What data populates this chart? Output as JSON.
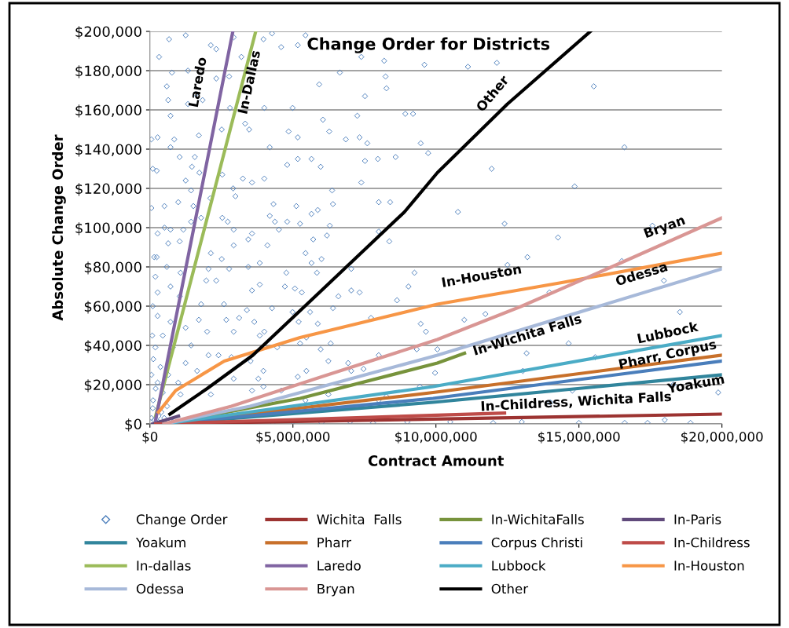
{
  "chart_data": {
    "type": "line",
    "title": "Change Order for Districts",
    "xlabel": "Contract Amount",
    "ylabel": "Absolute Change Order",
    "xlim": [
      0,
      20000000
    ],
    "ylim": [
      0,
      200000
    ],
    "xticks": [
      {
        "value": 0,
        "label": "$0"
      },
      {
        "value": 5000000,
        "label": "$5,000,000"
      },
      {
        "value": 10000000,
        "label": "$10,000,000"
      },
      {
        "value": 15000000,
        "label": "$15,000,000"
      },
      {
        "value": 20000000,
        "label": "$20,000,000"
      }
    ],
    "yticks": [
      {
        "value": 0,
        "label": "$0"
      },
      {
        "value": 20000,
        "label": "$20,000"
      },
      {
        "value": 40000,
        "label": "$40,000"
      },
      {
        "value": 60000,
        "label": "$60,000"
      },
      {
        "value": 80000,
        "label": "$80,000"
      },
      {
        "value": 100000,
        "label": "$100,000"
      },
      {
        "value": 120000,
        "label": "$120,000"
      },
      {
        "value": 140000,
        "label": "$140,000"
      },
      {
        "value": 160000,
        "label": "$160,000"
      },
      {
        "value": 180000,
        "label": "$180,000"
      },
      {
        "value": 200000,
        "label": "$200,000"
      }
    ],
    "grid": "y",
    "legend": "bottom",
    "line_style": "solid",
    "marker": "none",
    "annotations": [
      "Laredo",
      "In-Dallas",
      "Other",
      "In-Houston",
      "Bryan",
      "Odessa",
      "In-Wichita Falls",
      "Lubbock",
      "Pharr, Corpus",
      "Yoakum",
      "In-Childress, Wichita Falls"
    ],
    "series": [
      {
        "name": "Change Order",
        "type": "scatter",
        "marker": "diamond",
        "color": "#4f81bd",
        "x": [
          670000.0,
          1250000.0,
          320000.0,
          2130000.0,
          2320000.0,
          2930000.0,
          3970000.0,
          4270000.0,
          4590000.0,
          5170000.0,
          5440000.0,
          9600000.0,
          8190000.0,
          7390000.0,
          3200000.0,
          770000.0,
          1330000.0,
          590000.0,
          1600000.0,
          1840000.0,
          640000.0,
          1330000.0,
          2800000.0,
          2320000.0,
          2770000.0,
          5920000.0,
          6640000.0,
          8240000.0,
          8270000.0,
          7520000.0,
          4000000.0,
          4990000.0,
          7250000.0,
          8930000.0,
          9200000.0,
          720000.0,
          270000.0,
          850000.0,
          1710000.0,
          2510000.0,
          3330000.0,
          3470000.0,
          4850000.0,
          5170000.0,
          6050000.0,
          6270000.0,
          6850000.0,
          7330000.0,
          7600000.0,
          9470000.0,
          9730000.0,
          4190000.0,
          5170000.0,
          5650000.0,
          5970000.0,
          4800000.0,
          7520000.0,
          7970000.0,
          8590000.0,
          720000.0,
          1040000.0,
          1570000.0,
          240000.0,
          1470000.0,
          1730000.0,
          1250000.0,
          2530000.0,
          3250000.0,
          3570000.0,
          4000000.0,
          7390000.0,
          1440000.0,
          2910000.0,
          6370000.0,
          510000.0,
          990000.0,
          1520000.0,
          2110000.0,
          2990000.0,
          4320000.0,
          5120000.0,
          5870000.0,
          6400000.0,
          8000000.0,
          8400000.0,
          11120000.0,
          12130000.0,
          15520000.0,
          16590000.0,
          11950000.0,
          14850000.0,
          10770000.0,
          17570000.0,
          14270000.0,
          13200000.0,
          12500000.0,
          16500000.0,
          13970000.0,
          10990000.0,
          11730000.0,
          10050000.0,
          13170000.0,
          14640000.0,
          15570000.0,
          13040000.0,
          14770000.0,
          14000000.0,
          19870000.0,
          12400000.0,
          18530000.0,
          17970000.0,
          18300000.0,
          18000000.0,
          17400000.0,
          18900000.0,
          270000.0,
          510000.0,
          720000.0,
          1170000.0,
          1440000.0,
          1790000.0,
          2530000.0,
          2720000.0,
          2930000.0,
          3440000.0,
          3570000.0,
          4190000.0,
          4370000.0,
          4510000.0,
          4800000.0,
          5250000.0,
          5650000.0,
          6290000.0,
          6190000.0,
          5710000.0,
          4110000.0,
          2930000.0,
          1040000.0,
          640000.0,
          8000000.0,
          8370000.0,
          5440000.0,
          6000000.0,
          5650000.0,
          3840000.0,
          3440000.0,
          2510000.0,
          2130000.0,
          240000.0,
          590000.0,
          1070000.0,
          190000.0,
          2050000.0,
          2770000.0,
          4770000.0,
          5840000.0,
          7040000.0,
          9250000.0,
          9040000.0,
          3840000.0,
          4720000.0,
          5070000.0,
          5310000.0,
          6590000.0,
          7040000.0,
          7330000.0,
          8640000.0,
          3570000.0,
          2320000.0,
          1970000.0,
          720000.0,
          270000.0,
          1040000.0,
          1790000.0,
          2590000.0,
          3390000.0,
          4270000.0,
          4990000.0,
          5600000.0,
          6400000.0,
          7730000.0,
          9470000.0,
          9650000.0,
          1710000.0,
          2670000.0,
          3120000.0,
          3650000.0,
          5200000.0,
          5870000.0,
          270000.0,
          720000.0,
          1250000.0,
          2000000.0,
          2930000.0,
          3840000.0,
          4000000.0,
          4450000.0,
          5250000.0,
          5470000.0,
          5970000.0,
          6320000.0,
          9330000.0,
          8000000.0,
          450000.0,
          190000.0,
          800000.0,
          1440000.0,
          2050000.0,
          2400000.0,
          2850000.0,
          3520000.0,
          6240000.0,
          6930000.0,
          7470000.0,
          7040000.0,
          5470000.0,
          5170000.0,
          3970000.0,
          3790000.0,
          2930000.0,
          1650000.0,
          1250000.0,
          370000.0,
          640000.0,
          270000.0,
          990000.0,
          450000.0,
          1070000.0,
          110000.0,
          2130000.0,
          3570000.0,
          3970000.0,
          4590000.0,
          5440000.0,
          6240000.0,
          8000000.0,
          8270000.0,
          9970000.0,
          9440000.0,
          50000.0,
          100000.0,
          150000.0,
          200000.0,
          50000.0,
          120000.0,
          80000.0,
          100000.0,
          150000.0,
          50000.0,
          100000.0,
          50000.0,
          300000.0,
          500000.0,
          800000.0,
          4300000.0,
          5000000.0,
          6000000.0,
          7000000.0,
          7800000.0,
          9000000.0,
          10500000.0,
          12000000.0,
          13000000.0,
          15000000.0,
          16600000.0,
          400000.0,
          600000.0,
          300000.0
        ],
        "values": [
          196000.0,
          198000.0,
          187000.0,
          193000.0,
          191000.0,
          197000.0,
          196000.0,
          199000.0,
          192000.0,
          193000.0,
          198000.0,
          183000.0,
          185000.0,
          187000.0,
          187000.0,
          179000.0,
          180000.0,
          172000.0,
          168000.0,
          165000.0,
          165000.0,
          163000.0,
          161000.0,
          176000.0,
          177000.0,
          173000.0,
          179000.0,
          177000.0,
          171000.0,
          167000.0,
          161000.0,
          161000.0,
          157000.0,
          158000.0,
          158000.0,
          157000.0,
          146000.0,
          145000.0,
          147000.0,
          150000.0,
          153000.0,
          150000.0,
          149000.0,
          146000.0,
          155000.0,
          149000.0,
          145000.0,
          146000.0,
          143000.0,
          143000.0,
          138000.0,
          141000.0,
          135000.0,
          135000.0,
          131000.0,
          132000.0,
          134000.0,
          135000.0,
          136000.0,
          141000.0,
          136000.0,
          136000.0,
          129000.0,
          131000.0,
          128000.0,
          124000.0,
          127000.0,
          125000.0,
          123000.0,
          125000.0,
          123000.0,
          119000.0,
          120000.0,
          119000.0,
          111000.0,
          113000.0,
          111000.0,
          115000.0,
          116000.0,
          112000.0,
          111000.0,
          109000.0,
          112000.0,
          113000.0,
          113000.0,
          182000.0,
          184000.0,
          172000.0,
          141000.0,
          130000.0,
          121000.0,
          108000.0,
          101000.0,
          95000.0,
          85000.0,
          81000.0,
          83000.0,
          67000.0,
          53000.0,
          56000.0,
          38000.0,
          36000.0,
          41000.0,
          34000.0,
          27000.0,
          17000.0,
          11000.0,
          16000.0,
          102000.0,
          57000.0,
          73000.0,
          20000.0,
          2000.0,
          500.0,
          500.0,
          97000.0,
          100000.0,
          99000.0,
          99000.0,
          103000.0,
          105000.0,
          105000.0,
          103000.0,
          99000.0,
          94000.0,
          97000.0,
          106000.0,
          103000.0,
          99000.0,
          103000.0,
          102000.0,
          107000.0,
          101000.0,
          96000.0,
          94000.0,
          91000.0,
          91000.0,
          93000.0,
          92000.0,
          98000.0,
          93000.0,
          87000.0,
          84000.0,
          82000.0,
          82000.0,
          80000.0,
          84000.0,
          87000.0,
          85000.0,
          80000.0,
          77000.0,
          75000.0,
          79000.0,
          79000.0,
          77000.0,
          77000.0,
          79000.0,
          77000.0,
          70000.0,
          71000.0,
          70000.0,
          69000.0,
          67000.0,
          65000.0,
          68000.0,
          67000.0,
          63000.0,
          68000.0,
          73000.0,
          73000.0,
          70000.0,
          67000.0,
          65000.0,
          61000.0,
          61000.0,
          58000.0,
          59000.0,
          57000.0,
          57000.0,
          59000.0,
          54000.0,
          51000.0,
          47000.0,
          53000.0,
          53000.0,
          54000.0,
          52000.0,
          52000.0,
          51000.0,
          55000.0,
          52000.0,
          49000.0,
          47000.0,
          47000.0,
          45000.0,
          47000.0,
          39000.0,
          41000.0,
          44000.0,
          38000.0,
          41000.0,
          38000.0,
          35000.0,
          45000.0,
          39000.0,
          39000.0,
          40000.0,
          35000.0,
          35000.0,
          34000.0,
          32000.0,
          32000.0,
          31000.0,
          28000.0,
          27000.0,
          27000.0,
          24000.0,
          27000.0,
          23000.0,
          23000.0,
          27000.0,
          31000.0,
          29000.0,
          25000.0,
          21000.0,
          21000.0,
          16000.0,
          15000.0,
          12000.0,
          15000.0,
          17000.0,
          19000.0,
          17000.0,
          12000.0,
          15000.0,
          12000.0,
          14000.0,
          26000.0,
          19000.0,
          3000.0,
          8000.0,
          2000.0,
          18000.0,
          25000.0,
          33000.0,
          45000.0,
          60000.0,
          85000.0,
          110000.0,
          130000.0,
          145000.0,
          1000.0,
          3000.0,
          1000.0,
          500.0,
          1000.0,
          500.0,
          1000.0,
          500.0,
          1000.0,
          1000.0,
          500.0,
          1000.0,
          500.0,
          500.0,
          6000.0,
          9000.0,
          4000.0
        ]
      },
      {
        "name": "Wichita  Falls",
        "color": "#9c3331",
        "x": [
          200000.0,
          20000000.0
        ],
        "values": [
          0,
          5000.0
        ]
      },
      {
        "name": "In-WichitaFalls",
        "color": "#77933c",
        "x": [
          500000.0,
          5250000.0,
          10050000.0,
          11000000.0
        ],
        "values": [
          0,
          13000.0,
          31000.0,
          36000.0
        ]
      },
      {
        "name": "In-Paris",
        "color": "#604a7b",
        "x": [
          100000.0,
          1000000.0
        ],
        "values": [
          0,
          4000.0
        ]
      },
      {
        "name": "Yoakum",
        "color": "#31859c",
        "x": [
          500000.0,
          9900000.0,
          20000000.0
        ],
        "values": [
          0,
          11000.0,
          25000.0
        ]
      },
      {
        "name": "Pharr",
        "color": "#c8702a",
        "x": [
          500000.0,
          9900000.0,
          20000000.0
        ],
        "values": [
          0,
          16000.0,
          35000.0
        ]
      },
      {
        "name": "Corpus Christi",
        "color": "#4a7ebb",
        "x": [
          500000.0,
          9900000.0,
          20000000.0
        ],
        "values": [
          0,
          13000.0,
          32000.0
        ]
      },
      {
        "name": "In-Childress",
        "color": "#be4b48",
        "x": [
          200000.0,
          12400000.0
        ],
        "values": [
          0,
          5500.0
        ]
      },
      {
        "name": "In-dallas",
        "color": "#9bbb59",
        "x": [
          200000.0,
          3700000.0
        ],
        "values": [
          4000.0,
          200000.0
        ]
      },
      {
        "name": "Laredo",
        "color": "#8064a2",
        "x": [
          200000.0,
          2900000.0
        ],
        "values": [
          2000.0,
          200000.0
        ]
      },
      {
        "name": "Lubbock",
        "color": "#4bacc6",
        "x": [
          500000.0,
          9900000.0,
          20000000.0
        ],
        "values": [
          0,
          19000.0,
          45000.0
        ]
      },
      {
        "name": "In-Houston",
        "color": "#f79646",
        "x": [
          300000.0,
          900000.0,
          2600000.0,
          5250000.0,
          10050000.0,
          14400000.0,
          20000000.0
        ],
        "values": [
          6000.0,
          17000.0,
          32000.0,
          44000.0,
          61000.0,
          72000.0,
          87000.0
        ]
      },
      {
        "name": "Odessa",
        "color": "#a7b9d9",
        "x": [
          500000.0,
          3500000.0,
          10050000.0,
          20000000.0
        ],
        "values": [
          0,
          9000.0,
          35000.0,
          79000.0
        ]
      },
      {
        "name": "Bryan",
        "color": "#d99694",
        "x": [
          500000.0,
          2850000.0,
          6000000.0,
          10050000.0,
          13000000.0,
          16300000.0,
          20000000.0
        ],
        "values": [
          0,
          9000.0,
          24000.0,
          43000.0,
          60000.0,
          81000.0,
          105000.0
        ]
      },
      {
        "name": "Other",
        "color": "#000000",
        "x": [
          700000.0,
          2000000.0,
          3600000.0,
          6000000.0,
          8900000.0,
          10050000.0,
          12500000.0,
          15400000.0
        ],
        "values": [
          5000.0,
          18000.0,
          35000.0,
          68000.0,
          108000.0,
          128000.0,
          163000.0,
          200000.0
        ]
      }
    ]
  }
}
